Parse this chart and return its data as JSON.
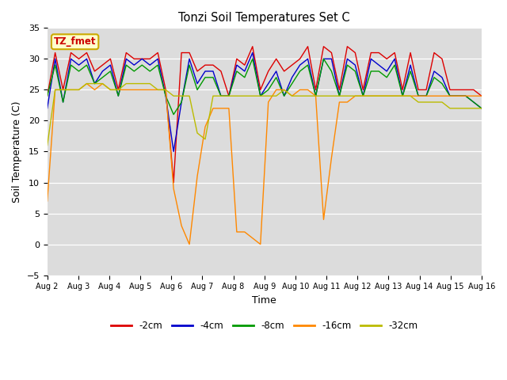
{
  "title": "Tonzi Soil Temperatures Set C",
  "xlabel": "Time",
  "ylabel": "Soil Temperature (C)",
  "ylim": [
    -5,
    35
  ],
  "yticks": [
    -5,
    0,
    5,
    10,
    15,
    20,
    25,
    30,
    35
  ],
  "x_tick_labels": [
    "Aug 2",
    "Aug 3",
    "Aug 4",
    "Aug 5",
    "Aug 6",
    "Aug 7",
    "Aug 8",
    "Aug 9",
    "Aug 10",
    "Aug 11",
    "Aug 12",
    "Aug 13",
    "Aug 14",
    "Aug 15",
    "Aug 16"
  ],
  "legend_label": "TZ_fmet",
  "series_labels": [
    "-2cm",
    "-4cm",
    "-8cm",
    "-16cm",
    "-32cm"
  ],
  "series_colors": [
    "#dd0000",
    "#0000cc",
    "#009900",
    "#ff8800",
    "#bbbb00"
  ],
  "background_color": "#dcdcdc",
  "figure_color": "#ffffff",
  "data": {
    "neg2cm": [
      24,
      31,
      25,
      31,
      30,
      31,
      28,
      29,
      30,
      25,
      31,
      30,
      30,
      30,
      31,
      25,
      10,
      31,
      31,
      28,
      29,
      29,
      28,
      24,
      30,
      29,
      32,
      25,
      28,
      30,
      28,
      29,
      30,
      32,
      25,
      32,
      31,
      25,
      32,
      31,
      25,
      31,
      31,
      30,
      31,
      25,
      31,
      25,
      25,
      31,
      30,
      25,
      25,
      25,
      25,
      24
    ],
    "neg4cm": [
      22,
      30,
      23,
      30,
      29,
      30,
      26,
      28,
      29,
      24,
      30,
      29,
      30,
      29,
      30,
      24,
      15,
      23,
      30,
      26,
      28,
      28,
      24,
      24,
      29,
      28,
      31,
      24,
      26,
      28,
      24,
      27,
      29,
      30,
      24,
      30,
      30,
      24,
      30,
      29,
      24,
      30,
      29,
      28,
      30,
      24,
      29,
      24,
      24,
      28,
      27,
      24,
      24,
      24,
      23,
      22
    ],
    "neg8cm": [
      24,
      29,
      23,
      29,
      28,
      29,
      26,
      27,
      28,
      24,
      29,
      28,
      29,
      28,
      29,
      24,
      21,
      23,
      29,
      25,
      27,
      27,
      24,
      24,
      28,
      27,
      30,
      24,
      25,
      27,
      24,
      26,
      28,
      29,
      24,
      30,
      28,
      24,
      29,
      28,
      24,
      28,
      28,
      27,
      29,
      24,
      28,
      24,
      24,
      27,
      26,
      24,
      24,
      24,
      23,
      22
    ],
    "neg16cm": [
      7,
      25,
      25,
      25,
      25,
      26,
      25,
      26,
      25,
      25,
      25,
      25,
      25,
      25,
      25,
      25,
      9,
      3,
      0,
      11,
      19,
      22,
      22,
      22,
      2,
      2,
      1,
      0,
      23,
      25,
      25,
      24,
      25,
      25,
      24,
      4,
      14,
      23,
      23,
      24,
      24,
      24,
      24,
      24,
      24,
      24,
      24,
      24,
      24,
      24,
      24,
      24,
      24,
      24,
      24,
      24
    ],
    "neg32cm": [
      16,
      25,
      25,
      25,
      25,
      26,
      26,
      26,
      25,
      25,
      26,
      26,
      26,
      26,
      25,
      25,
      24,
      24,
      24,
      18,
      17,
      24,
      24,
      24,
      24,
      24,
      24,
      24,
      24,
      24,
      25,
      24,
      24,
      24,
      24,
      24,
      24,
      24,
      24,
      24,
      24,
      24,
      24,
      24,
      24,
      24,
      24,
      23,
      23,
      23,
      23,
      22,
      22,
      22,
      22,
      22
    ]
  }
}
